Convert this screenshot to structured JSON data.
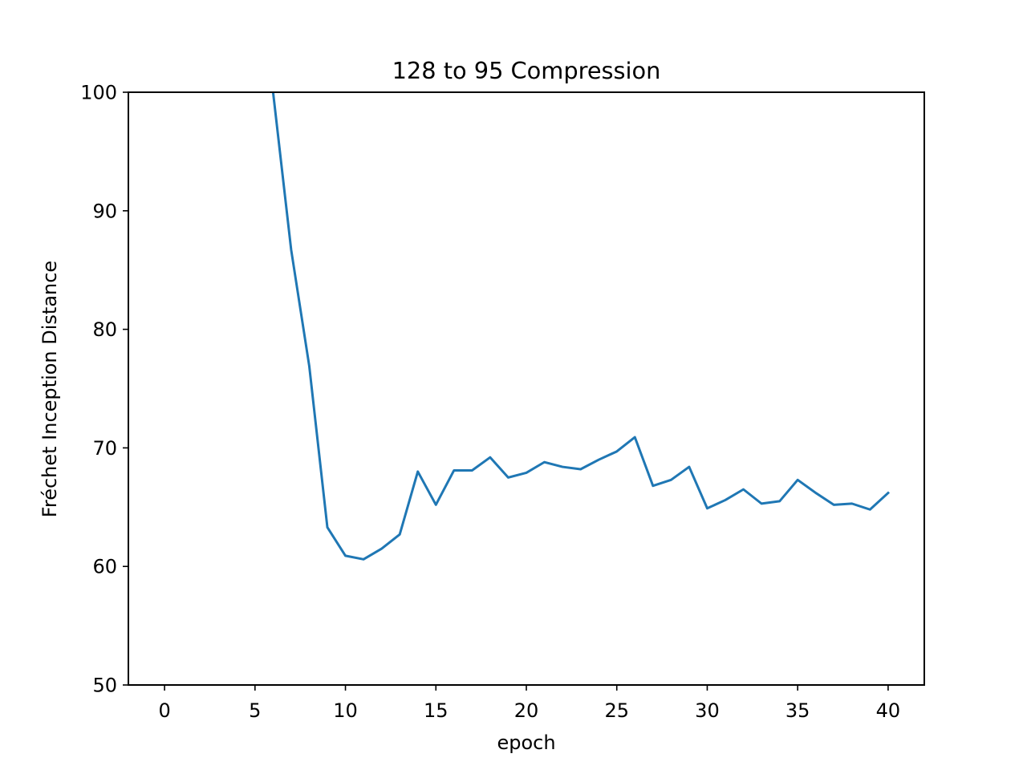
{
  "chart_data": {
    "type": "line",
    "title": "128 to 95 Compression",
    "xlabel": "epoch",
    "ylabel": "Fréchet Inception Distance",
    "xlim": [
      -2,
      42
    ],
    "ylim": [
      50,
      100
    ],
    "xticks": [
      0,
      5,
      10,
      15,
      20,
      25,
      30,
      35,
      40
    ],
    "yticks": [
      50,
      60,
      70,
      80,
      90,
      100
    ],
    "grid": false,
    "legend": "none",
    "series": [
      {
        "color": "#1f77b4",
        "x": [
          6,
          7,
          8,
          9,
          10,
          11,
          12,
          13,
          14,
          15,
          16,
          17,
          18,
          19,
          20,
          21,
          22,
          23,
          24,
          25,
          26,
          27,
          28,
          29,
          30,
          31,
          32,
          33,
          34,
          35,
          36,
          37,
          38,
          39,
          40
        ],
        "y": [
          100,
          86.7,
          76.9,
          63.3,
          60.9,
          60.6,
          61.5,
          62.7,
          68.0,
          65.2,
          68.1,
          68.1,
          69.2,
          67.5,
          67.9,
          68.8,
          68.4,
          68.2,
          69.0,
          69.7,
          70.9,
          66.8,
          67.3,
          68.4,
          64.9,
          65.6,
          66.5,
          65.3,
          65.5,
          67.3,
          66.2,
          65.2,
          65.3,
          64.8,
          66.2
        ]
      }
    ]
  }
}
